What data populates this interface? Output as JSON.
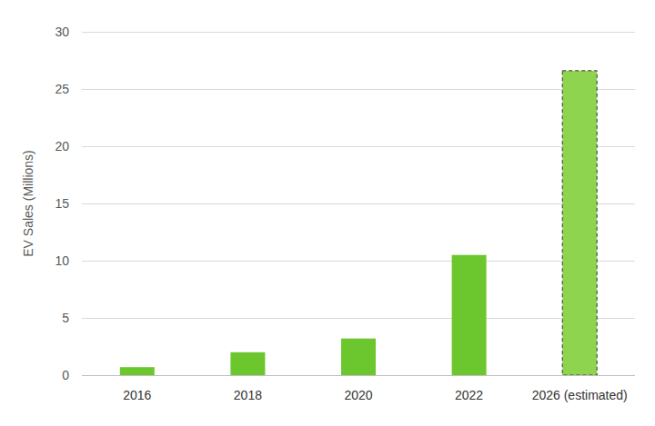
{
  "chart_data": {
    "type": "bar",
    "y_label": "EV Sales (Millions)",
    "categories": [
      "2016",
      "2018",
      "2020",
      "2022",
      "2026 (estimated)"
    ],
    "values": [
      0.7,
      2.0,
      3.2,
      10.5,
      26.6
    ],
    "color": "#6cc72e",
    "colors": [
      "#6cc72e",
      "#6cc72e",
      "#6cc72e",
      "#6cc72e",
      "#8fd44f"
    ],
    "ylim": [
      0,
      30
    ],
    "yticks": [
      0,
      5,
      10,
      15,
      20,
      25,
      30
    ],
    "grid": true
  }
}
